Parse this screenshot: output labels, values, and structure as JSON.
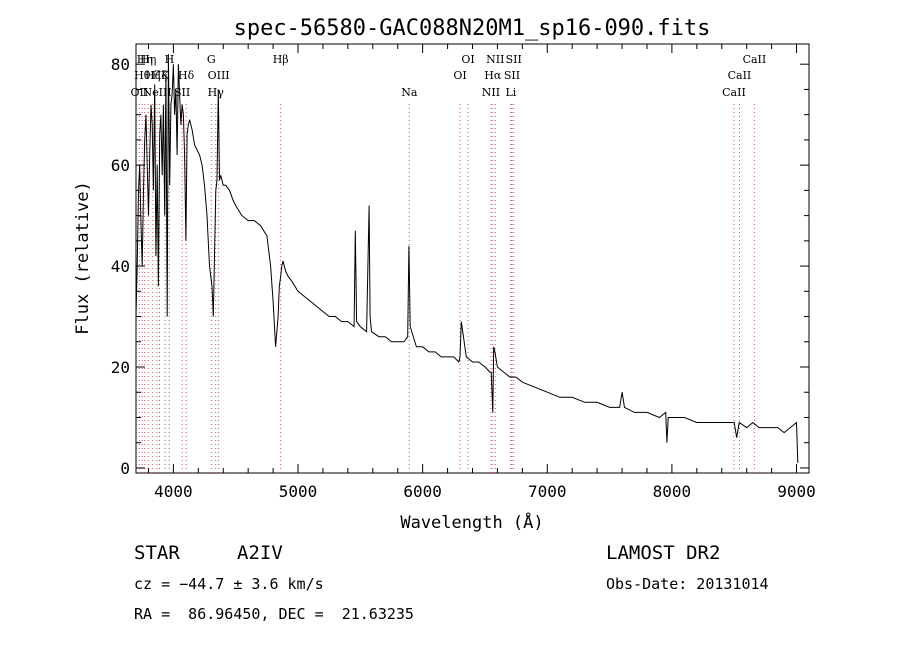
{
  "chart_data": {
    "type": "line",
    "title": "spec-56580-GAC088N20M1_sp16-090.fits",
    "xlabel": "Wavelength (Å)",
    "ylabel": "Flux (relative)",
    "xlim": [
      3700,
      9100
    ],
    "ylim": [
      -1,
      84
    ],
    "xticks": [
      4000,
      5000,
      6000,
      7000,
      8000,
      9000
    ],
    "yticks": [
      0,
      20,
      40,
      60,
      80
    ],
    "grid": false,
    "series": [
      {
        "x": [
          3700,
          3710,
          3720,
          3730,
          3740,
          3750,
          3760,
          3770,
          3780,
          3790,
          3800,
          3810,
          3820,
          3830,
          3840,
          3850,
          3860,
          3870,
          3880,
          3890,
          3900,
          3910,
          3920,
          3930,
          3940,
          3950,
          3960,
          3970,
          3980,
          3990,
          4000,
          4010,
          4020,
          4030,
          4040,
          4050,
          4060,
          4070,
          4080,
          4090,
          4100,
          4110,
          4120,
          4130,
          4150,
          4170,
          4190,
          4210,
          4230,
          4250,
          4270,
          4290,
          4310,
          4320,
          4330,
          4340,
          4350,
          4360,
          4370,
          4380,
          4400,
          4420,
          4450,
          4480,
          4500,
          4550,
          4600,
          4650,
          4700,
          4750,
          4780,
          4800,
          4820,
          4840,
          4850,
          4861,
          4870,
          4880,
          4900,
          4920,
          4950,
          5000,
          5050,
          5100,
          5150,
          5200,
          5250,
          5300,
          5350,
          5400,
          5450,
          5460,
          5470,
          5500,
          5550,
          5570,
          5578,
          5590,
          5650,
          5700,
          5750,
          5800,
          5850,
          5880,
          5890,
          5900,
          5950,
          6000,
          6050,
          6100,
          6150,
          6200,
          6250,
          6290,
          6300,
          6310,
          6350,
          6400,
          6450,
          6500,
          6540,
          6550,
          6563,
          6570,
          6580,
          6600,
          6650,
          6700,
          6750,
          6800,
          6900,
          7000,
          7100,
          7200,
          7300,
          7400,
          7500,
          7580,
          7600,
          7620,
          7700,
          7800,
          7900,
          7950,
          7960,
          7970,
          8000,
          8100,
          8200,
          8300,
          8400,
          8500,
          8520,
          8540,
          8600,
          8650,
          8700,
          8750,
          8800,
          8850,
          8900,
          8950,
          9000,
          9010
        ],
        "y": [
          30,
          40,
          55,
          60,
          48,
          40,
          55,
          65,
          70,
          60,
          50,
          62,
          72,
          68,
          55,
          76,
          42,
          60,
          36,
          66,
          70,
          58,
          72,
          50,
          78,
          30,
          82,
          56,
          72,
          74,
          80,
          70,
          75,
          62,
          80,
          74,
          68,
          72,
          70,
          62,
          45,
          66,
          68,
          69,
          67,
          64,
          63,
          62,
          60,
          56,
          50,
          40,
          36,
          30,
          42,
          55,
          57,
          75,
          57,
          58,
          56,
          56,
          55,
          53,
          52,
          50,
          49,
          49,
          48,
          46,
          40,
          33,
          24,
          30,
          36,
          38,
          40,
          41,
          39,
          38,
          37,
          35,
          34,
          33,
          32,
          31,
          30,
          30,
          29,
          29,
          28,
          47,
          29,
          28,
          27,
          52,
          30,
          27,
          26,
          26,
          25,
          25,
          25,
          26,
          44,
          28,
          24,
          24,
          23,
          23,
          22,
          22,
          22,
          21,
          22,
          29,
          22,
          21,
          21,
          20,
          19,
          19,
          11,
          24,
          23,
          20,
          19,
          18,
          18,
          17,
          16,
          15,
          14,
          14,
          13,
          13,
          12,
          12,
          15,
          12,
          11,
          11,
          10,
          11,
          5,
          10,
          10,
          10,
          9,
          9,
          9,
          9,
          6,
          9,
          8,
          9,
          8,
          8,
          8,
          8,
          7,
          8,
          9,
          1
        ]
      }
    ],
    "line_markers": [
      {
        "wave": 3727,
        "label": "OII",
        "row": 3
      },
      {
        "wave": 3750,
        "label": "Hθ",
        "row": 2
      },
      {
        "wave": 3771,
        "label": "Hη",
        "row": 1
      },
      {
        "wave": 3798,
        "label": "Hη",
        "row": 1
      },
      {
        "wave": 3835,
        "label": "Hζ",
        "row": 2
      },
      {
        "wave": 3869,
        "label": "NeIII",
        "row": 3
      },
      {
        "wave": 3889,
        "label": "Hζ",
        "row": 2
      },
      {
        "wave": 3934,
        "label": "K",
        "row": 2
      },
      {
        "wave": 3968,
        "label": "H",
        "row": 1
      },
      {
        "wave": 4070,
        "label": "SII",
        "row": 3
      },
      {
        "wave": 4102,
        "label": "Hδ",
        "row": 2
      },
      {
        "wave": 4304,
        "label": "G",
        "row": 1
      },
      {
        "wave": 4340,
        "label": "Hγ",
        "row": 3
      },
      {
        "wave": 4363,
        "label": "OIII",
        "row": 2
      },
      {
        "wave": 4861,
        "label": "Hβ",
        "row": 1
      },
      {
        "wave": 5893,
        "label": "Na",
        "row": 3
      },
      {
        "wave": 6300,
        "label": "OI",
        "row": 2
      },
      {
        "wave": 6364,
        "label": "OI",
        "row": 1
      },
      {
        "wave": 6548,
        "label": "NII",
        "row": 3
      },
      {
        "wave": 6563,
        "label": "Hα",
        "row": 2
      },
      {
        "wave": 6583,
        "label": "NII",
        "row": 1
      },
      {
        "wave": 6708,
        "label": "Li",
        "row": 3
      },
      {
        "wave": 6717,
        "label": "SII",
        "row": 2
      },
      {
        "wave": 6731,
        "label": "SII",
        "row": 1
      },
      {
        "wave": 8498,
        "label": "CaII",
        "row": 3
      },
      {
        "wave": 8542,
        "label": "CaII",
        "row": 2
      },
      {
        "wave": 8662,
        "label": "CaII",
        "row": 1
      }
    ]
  },
  "info": {
    "object_type": "STAR",
    "subclass": "A2IV",
    "redshift": "cz = −44.7 ± 3.6 km/s",
    "coords": "RA =  86.96450, DEC =  21.63235",
    "survey": "LAMOST DR2",
    "obs_date": "Obs-Date: 20131014"
  }
}
